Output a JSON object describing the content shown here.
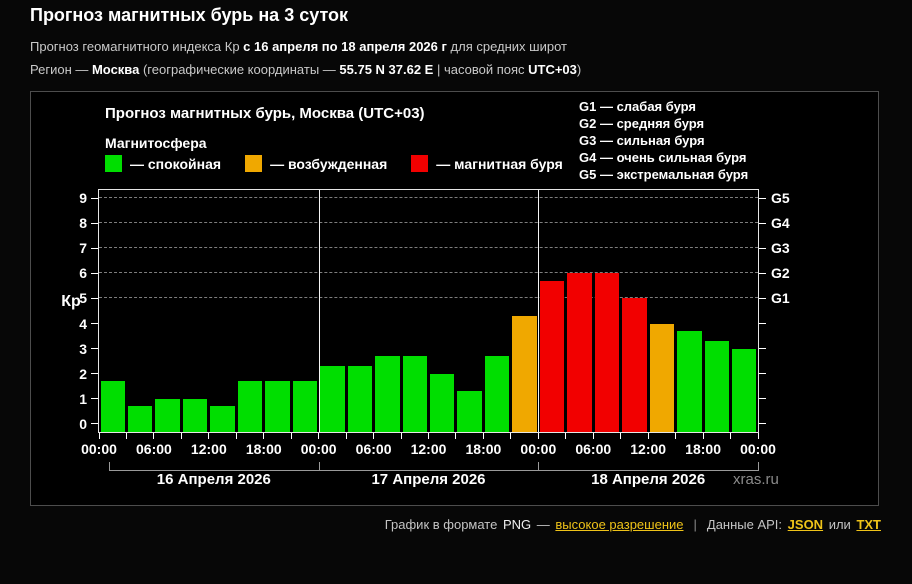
{
  "page": {
    "title": "Прогноз магнитных бурь на 3 суток",
    "subtitle1_prefix": "Прогноз геомагнитного индекса Кр ",
    "subtitle1_bold": "с 16 апреля по 18 апреля 2026 г",
    "subtitle1_suffix": " для средних широт",
    "subtitle2_prefix": "Регион — ",
    "subtitle2_bold1": "Москва",
    "subtitle2_mid1": " (географические координаты — ",
    "subtitle2_bold2": "55.75 N 37.62 E",
    "subtitle2_mid2": " | часовой пояс ",
    "subtitle2_bold3": "UTC+03",
    "subtitle2_suffix": ")"
  },
  "chart": {
    "title": "Прогноз магнитных бурь, Москва (UTC+03)",
    "legend_title": "Магнитосфера",
    "legend": [
      {
        "name": "quiet",
        "label": "— спокойная",
        "color": "#00DE00"
      },
      {
        "name": "excited",
        "label": "— возбужденная",
        "color": "#F0A800"
      },
      {
        "name": "storm",
        "label": "— магнитная буря",
        "color": "#F20000"
      }
    ],
    "g_legend": [
      "G1 — слабая буря",
      "G2 — средняя буря",
      "G3 — сильная буря",
      "G4 — очень сильная буря",
      "G5 — экстремальная буря"
    ],
    "watermark": "xras.ru"
  },
  "chart_data": {
    "type": "bar",
    "title": "Прогноз магнитных бурь, Москва (UTC+03)",
    "ylabel": "Кр",
    "xlabel": "",
    "ylim": [
      -0.33,
      9.33
    ],
    "yticks": [
      0,
      1,
      2,
      3,
      4,
      5,
      6,
      7,
      8,
      9
    ],
    "grid_kp": [
      5,
      6,
      7,
      8,
      9
    ],
    "right_ticks": [
      0,
      1,
      2,
      3,
      4,
      5,
      6,
      7,
      8,
      9
    ],
    "right_labels": [
      {
        "kp": 5,
        "text": "G1"
      },
      {
        "kp": 6,
        "text": "G2"
      },
      {
        "kp": 7,
        "text": "G3"
      },
      {
        "kp": 8,
        "text": "G4"
      },
      {
        "kp": 9,
        "text": "G5"
      }
    ],
    "hours_per_bar": 3,
    "days": [
      {
        "label": "16 Апреля 2026",
        "values": [
          1.7,
          0.7,
          1.0,
          1.0,
          0.7,
          1.7,
          1.7,
          1.7
        ]
      },
      {
        "label": "17 Апреля 2026",
        "values": [
          2.3,
          2.3,
          2.7,
          2.7,
          2.0,
          1.3,
          2.7,
          4.3
        ]
      },
      {
        "label": "18 Апреля 2026",
        "values": [
          5.7,
          6.0,
          6.0,
          5.0,
          4.0,
          3.7,
          3.3,
          3.0
        ]
      }
    ],
    "x_tick_hours": [
      0,
      6,
      12,
      18,
      24,
      30,
      36,
      42,
      48,
      54,
      60,
      66,
      72
    ],
    "x_tick_labels": [
      "00:00",
      "06:00",
      "12:00",
      "18:00",
      "00:00",
      "06:00",
      "12:00",
      "18:00",
      "00:00",
      "06:00",
      "12:00",
      "18:00",
      "00:00"
    ],
    "colors": {
      "quiet": "#00DE00",
      "excited": "#F0A800",
      "storm": "#F20000"
    },
    "thresholds": {
      "excited_min": 4,
      "storm_min": 5
    },
    "legend_position": "top-left",
    "grid": "dashed horizontal at Kp 5-9 only"
  },
  "footer": {
    "text1": "График в формате",
    "png": "PNG",
    "dash": "—",
    "link_highres": "высокое разрешение",
    "pipe": "|",
    "text2": "Данные API:",
    "link_json": "JSON",
    "text3": "или",
    "link_txt": "TXT"
  }
}
